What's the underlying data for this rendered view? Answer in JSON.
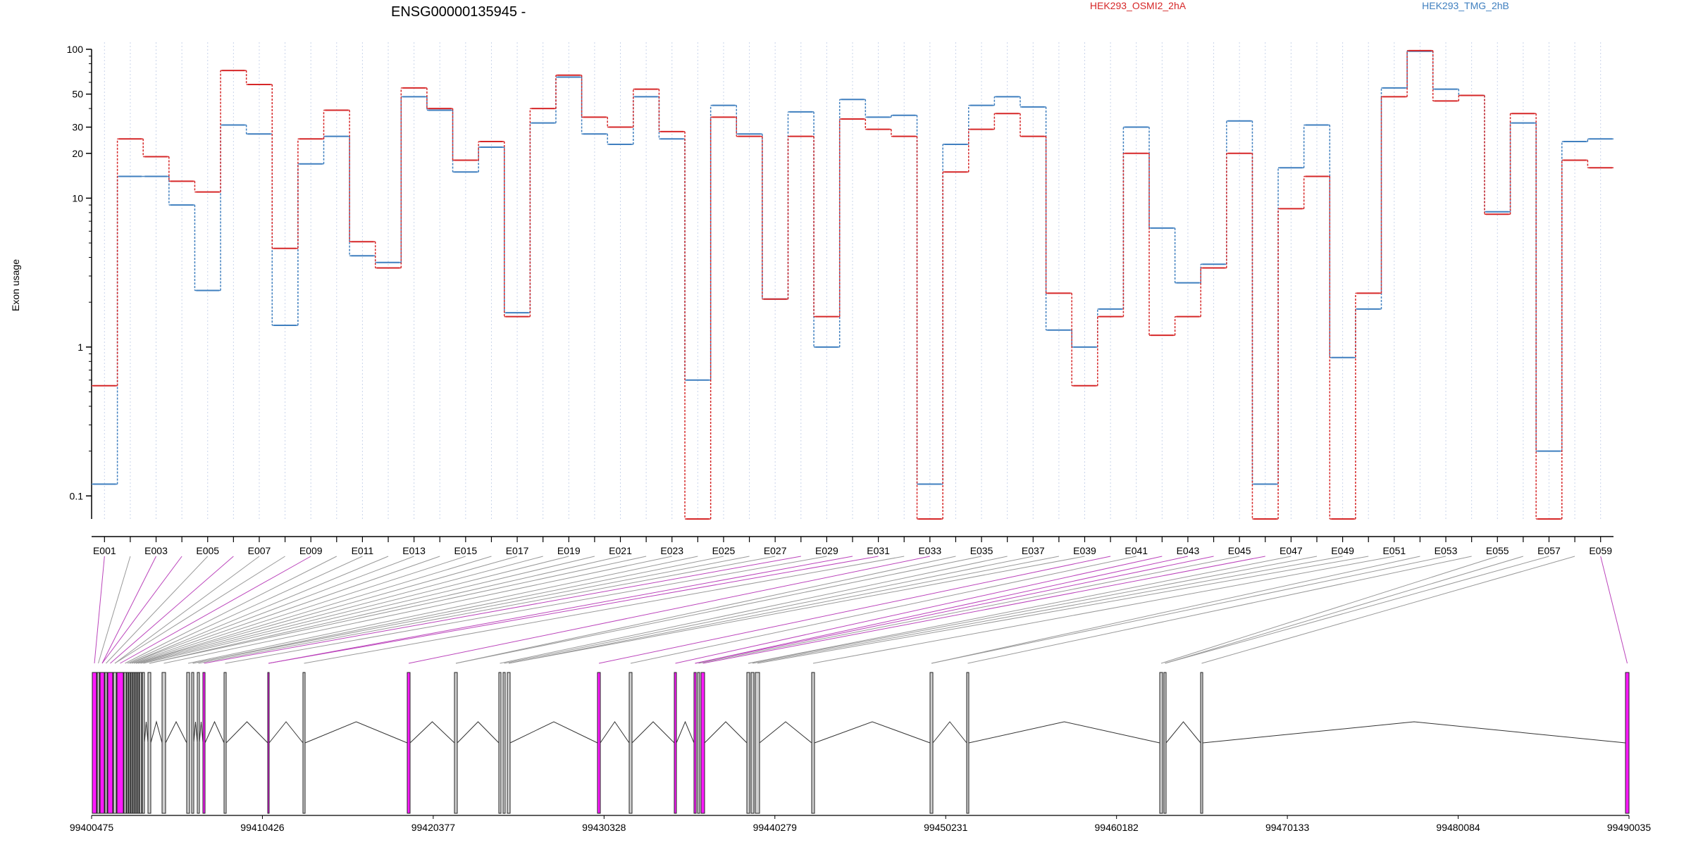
{
  "chart_data": {
    "type": "line",
    "title": "ENSG00000135945 -",
    "ylabel": "Exon usage",
    "y_scale": "log",
    "ylim": [
      0.07,
      100
    ],
    "y_ticks": [
      0.1,
      1,
      10,
      20,
      30,
      50,
      100
    ],
    "y_tick_labels": [
      "0.1",
      "1",
      "10",
      "20",
      "30",
      "50",
      "100"
    ],
    "categories": [
      "E001",
      "E002",
      "E003",
      "E004",
      "E005",
      "E006",
      "E007",
      "E008",
      "E009",
      "E010",
      "E011",
      "E012",
      "E013",
      "E014",
      "E015",
      "E016",
      "E017",
      "E018",
      "E019",
      "E020",
      "E021",
      "E022",
      "E023",
      "E024",
      "E025",
      "E026",
      "E027",
      "E028",
      "E029",
      "E030",
      "E031",
      "E032",
      "E033",
      "E034",
      "E035",
      "E036",
      "E037",
      "E038",
      "E039",
      "E040",
      "E041",
      "E042",
      "E043",
      "E044",
      "E045",
      "E046",
      "E047",
      "E048",
      "E049",
      "E050",
      "E051",
      "E052",
      "E053",
      "E054",
      "E055",
      "E056",
      "E057",
      "E058",
      "E059"
    ],
    "x_tick_labels": [
      "E001",
      "E003",
      "E005",
      "E007",
      "E009",
      "E011",
      "E013",
      "E015",
      "E017",
      "E019",
      "E021",
      "E023",
      "E025",
      "E027",
      "E029",
      "E031",
      "E033",
      "E035",
      "E037",
      "E039",
      "E041",
      "E043",
      "E045",
      "E047",
      "E049",
      "E051",
      "E053",
      "E055",
      "E057",
      "E059"
    ],
    "series": [
      {
        "name": "HEK293_OSMI2_2hA",
        "color": "#d62728",
        "values": [
          0.55,
          25,
          19,
          13,
          11,
          72,
          58,
          4.6,
          25,
          39,
          5.1,
          3.4,
          55,
          40,
          18,
          24,
          1.6,
          40,
          67,
          35,
          30,
          54,
          28,
          0.07,
          35,
          26,
          2.1,
          26,
          1.6,
          34,
          29,
          26,
          0.07,
          15,
          29,
          37,
          26,
          2.3,
          0.55,
          1.6,
          20,
          1.2,
          1.6,
          3.4,
          20,
          0.07,
          8.5,
          14,
          0.07,
          2.3,
          48,
          98,
          45,
          49,
          7.8,
          37,
          0.07,
          18,
          16
        ]
      },
      {
        "name": "HEK293_TMG_2hB",
        "color": "#3f7fbf",
        "values": [
          0.12,
          14,
          14,
          9,
          2.4,
          31,
          27,
          1.4,
          17,
          26,
          4.1,
          3.7,
          48,
          39,
          15,
          22,
          1.7,
          32,
          65,
          27,
          23,
          48,
          25,
          0.6,
          42,
          27,
          2.1,
          38,
          1.0,
          46,
          35,
          36,
          0.12,
          23,
          42,
          48,
          41,
          1.3,
          1.0,
          1.8,
          30,
          6.3,
          2.7,
          3.6,
          33,
          0.12,
          16,
          31,
          0.85,
          1.8,
          55,
          97,
          54,
          49,
          8.1,
          32,
          0.2,
          24,
          25
        ]
      }
    ],
    "gene_model": {
      "coordinate_labels": [
        "99400475",
        "99410426",
        "99420377",
        "99430328",
        "99440279",
        "99450231",
        "99460182",
        "99470133",
        "99480084",
        "99490035"
      ],
      "xlim": [
        99400475,
        99490035
      ]
    }
  },
  "colors": {
    "highlight_exon": "#ff1aff",
    "highlight_link": "#bb44bb",
    "plain_exon": "#d0d0d0",
    "plain_link": "#999999",
    "axis": "#000000"
  }
}
